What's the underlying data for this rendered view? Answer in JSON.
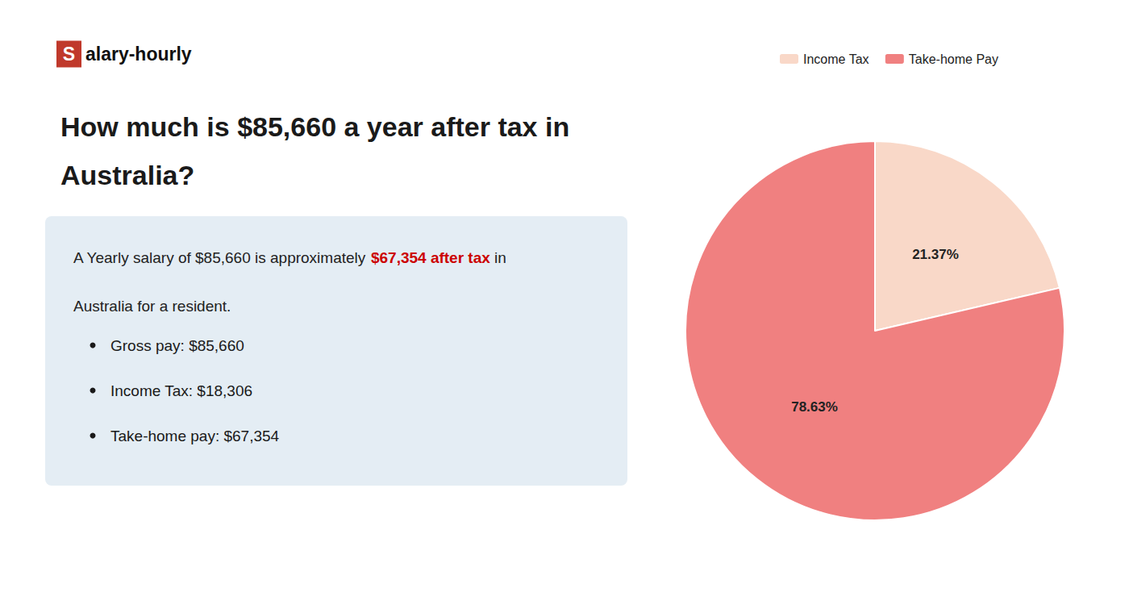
{
  "chart_data": {
    "type": "pie",
    "title": "How much is $85,660 a year after tax in\nAustralia?",
    "categories": [
      "Income Tax",
      "Take-home Pay"
    ],
    "values": [
      21.37,
      78.63
    ],
    "value_labels": [
      "21.37%",
      "78.63%"
    ],
    "colors": [
      "#f9d8c8",
      "#f08080"
    ],
    "data_labels": true,
    "legend": "top",
    "annotations": [
      {
        "text": "S",
        "color": "#c0392b"
      },
      {
        "text": "alary-hourly"
      },
      {
        "text": "A Yearly salary of $85,660 is approximately "
      },
      {
        "text": "$67,354 after tax",
        "color": "#cc0000"
      },
      {
        "text": " in"
      },
      {
        "text": "Australia for a resident."
      },
      {
        "text": "Gross pay: $85,660"
      },
      {
        "text": "Income Tax: $18,306"
      },
      {
        "text": "Take-home pay: $67,354"
      }
    ]
  }
}
